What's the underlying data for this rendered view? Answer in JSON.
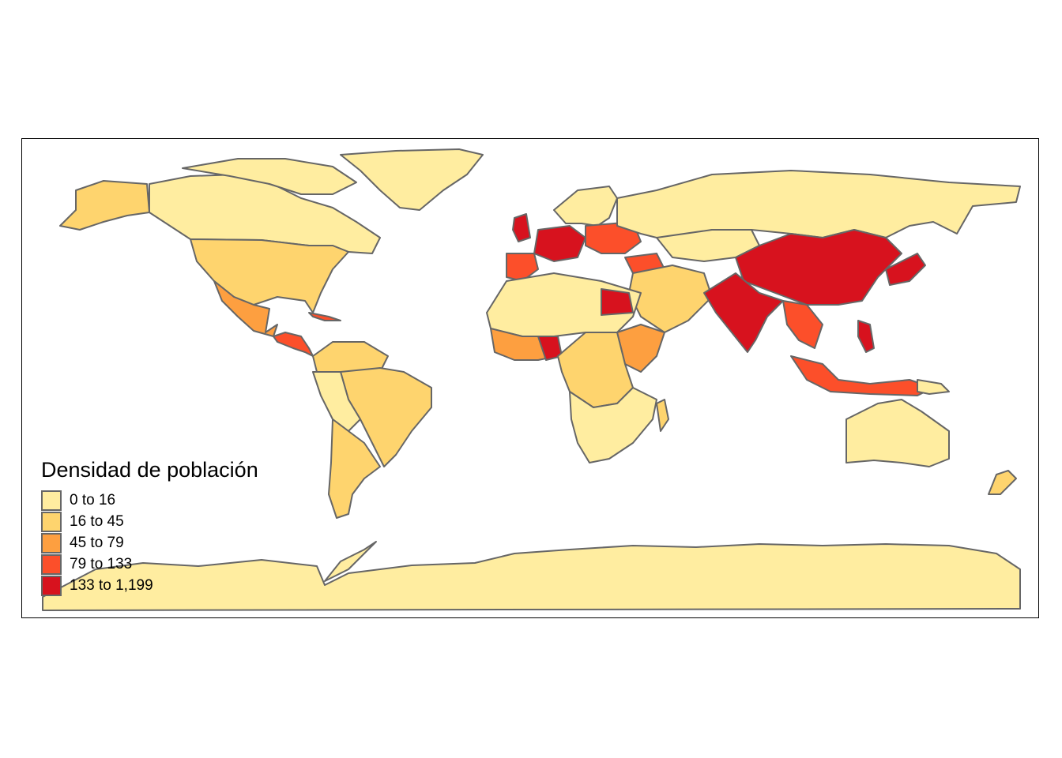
{
  "legend": {
    "title": "Densidad de población",
    "classes": [
      {
        "label": "0 to 16",
        "color": "#FFEDA0"
      },
      {
        "label": "16 to 45",
        "color": "#FED46E"
      },
      {
        "label": "45 to 79",
        "color": "#FD9F40"
      },
      {
        "label": "79 to 133",
        "color": "#FC4F2A"
      },
      {
        "label": "133 to 1,199",
        "color": "#D7121E"
      }
    ]
  },
  "border_color": "#666666",
  "ocean_color": "#FFFFFF"
}
